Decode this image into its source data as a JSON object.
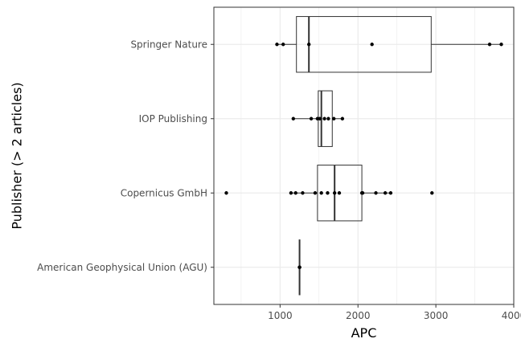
{
  "chart_data": {
    "type": "boxplot",
    "orientation": "horizontal",
    "title": "",
    "xlabel": "APC",
    "ylabel": "Publisher (> 2 articles)",
    "xlim": [
      150,
      4000
    ],
    "x_ticks": [
      1000,
      2000,
      3000,
      4000
    ],
    "x_tick_labels": [
      "1000",
      "2000",
      "3000",
      "4000"
    ],
    "grid": true,
    "legend": "none",
    "categories": [
      "American Geophysical Union (AGU)",
      "Copernicus GmbH",
      "IOP Publishing",
      "Springer Nature"
    ],
    "boxes": [
      {
        "category": "American Geophysical Union (AGU)",
        "min": 1250,
        "q1": 1250,
        "median": 1250,
        "q3": 1250,
        "max": 1250
      },
      {
        "category": "Copernicus GmbH",
        "min": 1140,
        "q1": 1480,
        "median": 1700,
        "q3": 2050,
        "max": 2420,
        "outliers": [
          310,
          2950
        ]
      },
      {
        "category": "IOP Publishing",
        "min": 1170,
        "q1": 1490,
        "median": 1530,
        "q3": 1670,
        "max": 1800
      },
      {
        "category": "Springer Nature",
        "min": 960,
        "q1": 1210,
        "median": 1370,
        "q3": 2940,
        "max": 3840
      }
    ],
    "points": [
      {
        "category": "American Geophysical Union (AGU)",
        "values": [
          1250,
          1250,
          1250
        ]
      },
      {
        "category": "Copernicus GmbH",
        "values": [
          310,
          1140,
          1200,
          1290,
          1450,
          1530,
          1610,
          1700,
          1760,
          2050,
          2060,
          2230,
          2350,
          2420,
          2950
        ]
      },
      {
        "category": "IOP Publishing",
        "values": [
          1170,
          1400,
          1480,
          1510,
          1570,
          1620,
          1690,
          1800
        ]
      },
      {
        "category": "Springer Nature",
        "values": [
          960,
          1040,
          1370,
          2180,
          3690,
          3840
        ]
      }
    ],
    "colors": {
      "box_stroke": "#333333",
      "box_fill": "#ffffff",
      "point": "#000000",
      "grid": "#ebebeb",
      "panel_border": "#333333"
    }
  }
}
